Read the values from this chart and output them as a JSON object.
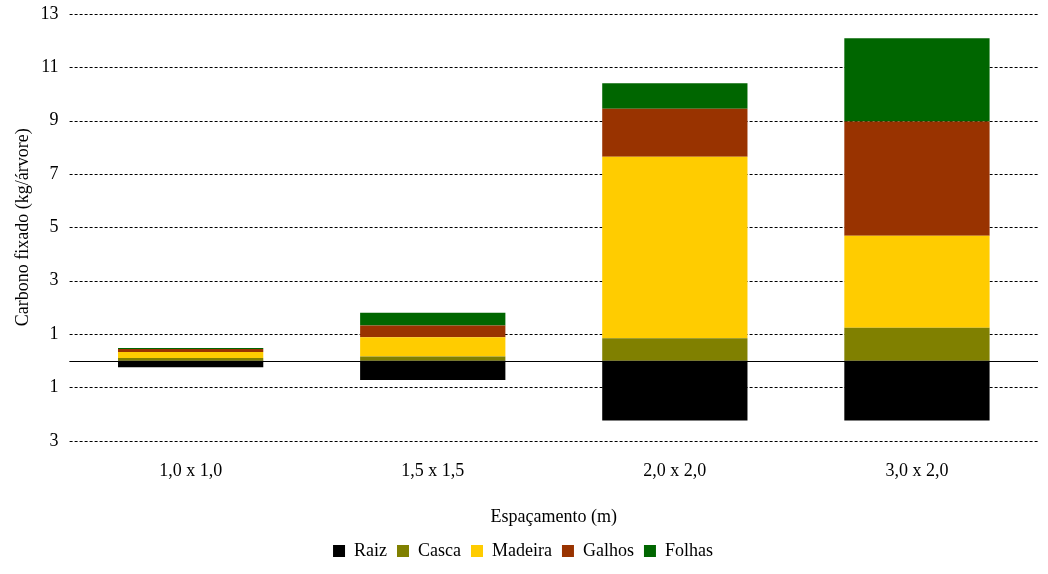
{
  "chart_data": {
    "type": "bar",
    "stacked": true,
    "xlabel": "Espaçamento (m)",
    "ylabel": "Carbono fixado (kg/árvore)",
    "categories": [
      "1,0 x 1,0",
      "1,5 x 1,5",
      "2,0 x 2,0",
      "3,0 x 2,0"
    ],
    "series": [
      {
        "name": "Raiz",
        "color": "#000000",
        "values": [
          -0.24,
          -0.72,
          -2.24,
          -2.24
        ]
      },
      {
        "name": "Casca",
        "color": "#808000",
        "values": [
          0.1,
          0.16,
          0.84,
          1.24
        ]
      },
      {
        "name": "Madeira",
        "color": "#ffcc00",
        "values": [
          0.23,
          0.72,
          6.8,
          3.44
        ]
      },
      {
        "name": "Galhos",
        "color": "#993300",
        "values": [
          0.11,
          0.44,
          1.8,
          4.28
        ]
      },
      {
        "name": "Folhas",
        "color": "#006600",
        "values": [
          0.04,
          0.48,
          0.96,
          3.12
        ]
      }
    ],
    "ylim": [
      -3,
      13
    ],
    "yticks": [
      {
        "value": -3,
        "label": "3"
      },
      {
        "value": -1,
        "label": "1"
      },
      {
        "value": 0,
        "label": null
      },
      1,
      3,
      5,
      7,
      9,
      11,
      13
    ],
    "grid": "y",
    "legend": "bottom"
  }
}
